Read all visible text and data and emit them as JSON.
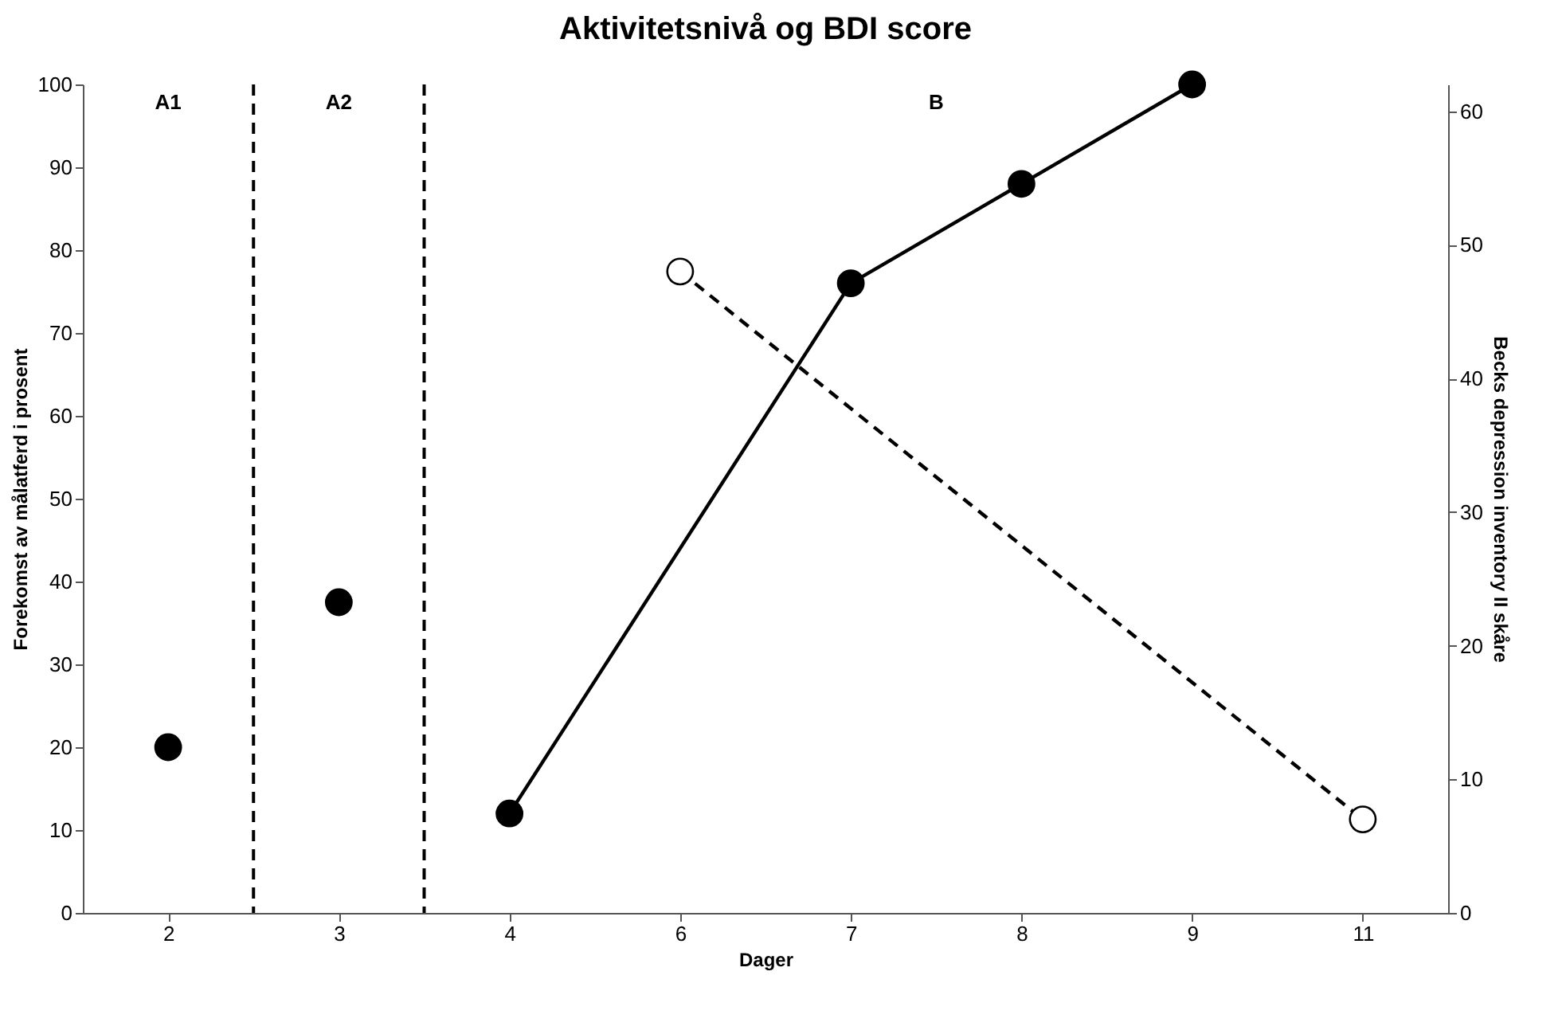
{
  "chart_data": {
    "type": "scatter",
    "title": "Aktivitetsnivå og BDI score",
    "xlabel": "Dager",
    "ylabel": "Forekomst av målatferd i prosent",
    "y2label": "Becks depression inventory II skåre",
    "categories": [
      "2",
      "3",
      "4",
      "6",
      "7",
      "8",
      "9",
      "11"
    ],
    "series": [
      {
        "type": "scatter",
        "color": "#000000",
        "values": [
          20,
          null,
          null,
          null,
          null,
          null,
          null,
          null
        ]
      },
      {
        "type": "scatter",
        "color": "#000000",
        "values": [
          null,
          37.5,
          null,
          null,
          null,
          null,
          null,
          null
        ]
      },
      {
        "type": "line",
        "color": "#000000",
        "line_style": "solid",
        "values": [
          null,
          null,
          12,
          null,
          76,
          88,
          100,
          null
        ]
      },
      {
        "type": "line",
        "color": "#000000",
        "axis": "y2",
        "line_style": "dashed",
        "values": [
          null,
          null,
          null,
          48,
          null,
          null,
          null,
          7
        ]
      }
    ],
    "ylim": [
      0,
      100
    ],
    "yticks": [
      0,
      10,
      20,
      30,
      40,
      50,
      60,
      70,
      80,
      90,
      100
    ],
    "y2lim": [
      0,
      62
    ],
    "y2ticks": [
      0,
      10,
      20,
      30,
      40,
      50,
      60
    ],
    "annotations": [
      "A1",
      "A2",
      "B"
    ],
    "marker": "circle",
    "grid": false
  }
}
